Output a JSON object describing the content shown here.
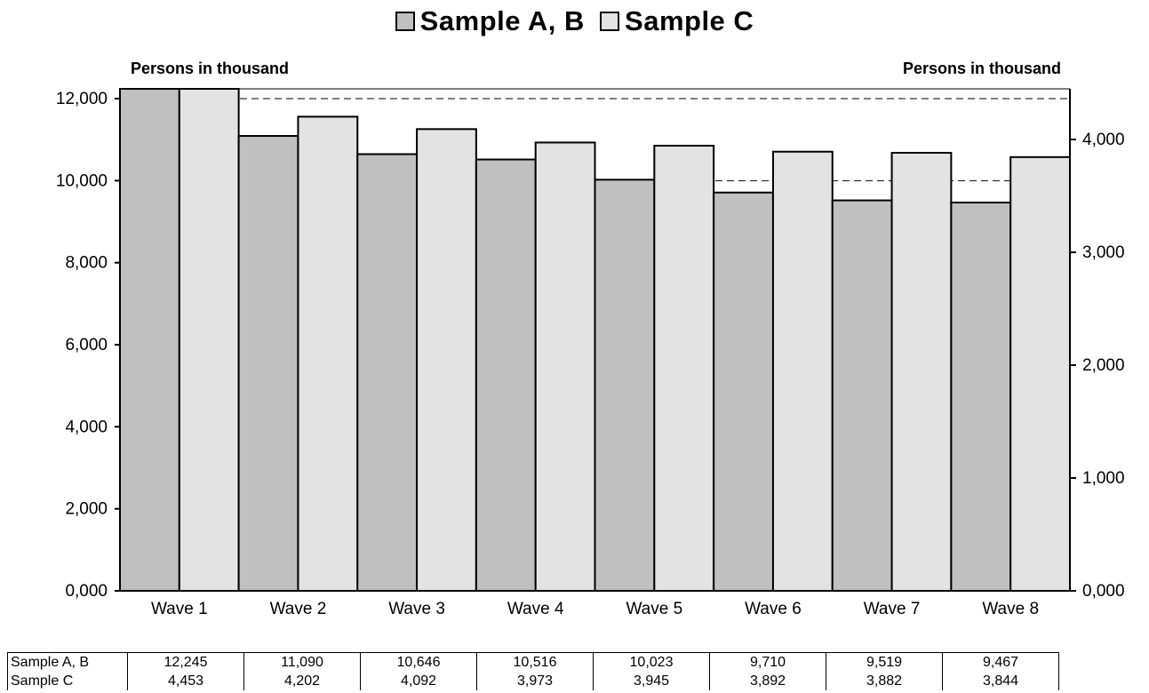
{
  "legend": [
    {
      "label": "Sample A, B",
      "color": "#c0c0c0"
    },
    {
      "label": "Sample C",
      "color": "#e3e3e3"
    }
  ],
  "axis_units": {
    "left": "Persons in thousand",
    "right": "Persons in thousand"
  },
  "chart_data": {
    "type": "bar",
    "categories": [
      "Wave 1",
      "Wave 2",
      "Wave 3",
      "Wave 4",
      "Wave 5",
      "Wave 6",
      "Wave 7",
      "Wave 8"
    ],
    "series": [
      {
        "name": "Sample A, B",
        "axis": "left",
        "color": "#c0c0c0",
        "values": [
          12245,
          11090,
          10646,
          10516,
          10023,
          9710,
          9519,
          9467
        ]
      },
      {
        "name": "Sample C",
        "axis": "right",
        "color": "#e3e3e3",
        "values": [
          4453,
          4202,
          4092,
          3973,
          3945,
          3892,
          3882,
          3844
        ]
      }
    ],
    "left_axis": {
      "ylim": [
        0,
        12000
      ],
      "ticks": [
        0,
        2000,
        4000,
        6000,
        8000,
        10000,
        12000
      ],
      "tick_labels": [
        "0,000",
        "2,000",
        "4,000",
        "6,000",
        "8,000",
        "10,000",
        "12,000"
      ]
    },
    "right_axis": {
      "ylim": [
        0,
        4000
      ],
      "ticks": [
        0,
        1000,
        2000,
        3000,
        4000
      ],
      "tick_labels": [
        "0,000",
        "1,000",
        "2,000",
        "3,000",
        "4,000"
      ]
    },
    "reference_lines_left": [
      12000,
      10000
    ],
    "legend_position": "top"
  },
  "table": {
    "rows": [
      {
        "label": "Sample A, B",
        "values": [
          "12,245",
          "11,090",
          "10,646",
          "10,516",
          "10,023",
          "9,710",
          "9,519",
          "9,467"
        ]
      },
      {
        "label": "Sample C",
        "values": [
          "4,453",
          "4,202",
          "4,092",
          "3,973",
          "3,945",
          "3,892",
          "3,882",
          "3,844"
        ]
      }
    ]
  }
}
